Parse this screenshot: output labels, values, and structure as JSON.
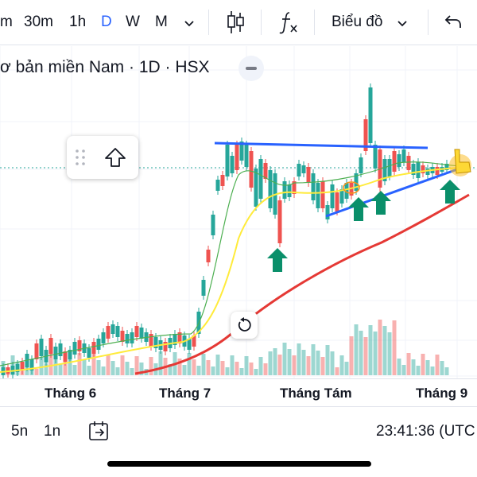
{
  "toolbar": {
    "intervals": [
      "m",
      "30m",
      "1h",
      "D",
      "W",
      "M"
    ],
    "active_interval": "D",
    "chart_menu_label": "Biểu đồ",
    "icons": [
      "chevron-down-icon",
      "candles-icon",
      "fx-icon",
      "undo-icon"
    ]
  },
  "symbol_title": "ơ bản miền Nam · 1D · HSX",
  "x_labels": [
    "Tháng 6",
    "Tháng 7",
    "Tháng Tám",
    "Tháng 9"
  ],
  "bottom": {
    "ranges": [
      "5n",
      "1n"
    ],
    "time": "23:41:36 (UTC"
  },
  "colors": {
    "up": "#26a69a",
    "down": "#ef5350",
    "resistance_line": "#2962ff",
    "support_line": "#2962ff",
    "ma_slow": "#e53935",
    "ma_mid": "#ffeb3b",
    "ma_fast": "#4caf50",
    "arrow": "#0a8f6a",
    "accent": "#2962ff"
  }
}
